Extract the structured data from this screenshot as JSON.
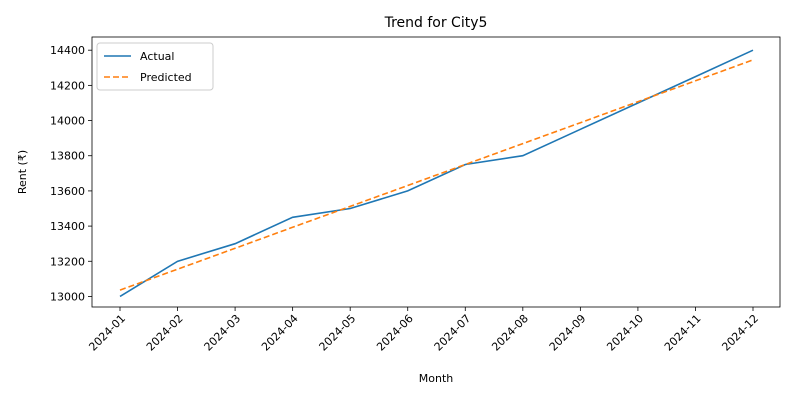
{
  "chart_data": {
    "type": "line",
    "title": "Trend for City5",
    "xlabel": "Month",
    "ylabel": "Rent (₹)",
    "categories": [
      "2024-01",
      "2024-02",
      "2024-03",
      "2024-04",
      "2024-05",
      "2024-06",
      "2024-07",
      "2024-08",
      "2024-09",
      "2024-10",
      "2024-11",
      "2024-12"
    ],
    "ylim": [
      12940,
      14475
    ],
    "yticks": [
      13000,
      13200,
      13400,
      13600,
      13800,
      14000,
      14200,
      14400
    ],
    "grid": false,
    "legend_position": "top-left",
    "series": [
      {
        "name": "Actual",
        "color": "#1f77b4",
        "style": "solid",
        "values": [
          13000,
          13200,
          13300,
          13450,
          13500,
          13600,
          13750,
          13800,
          13950,
          14100,
          14250,
          14400
        ]
      },
      {
        "name": "Predicted",
        "color": "#ff7f0e",
        "style": "dashed",
        "values": [
          13036,
          13155,
          13274,
          13393,
          13512,
          13631,
          13750,
          13869,
          13988,
          14107,
          14226,
          14345
        ]
      }
    ]
  }
}
